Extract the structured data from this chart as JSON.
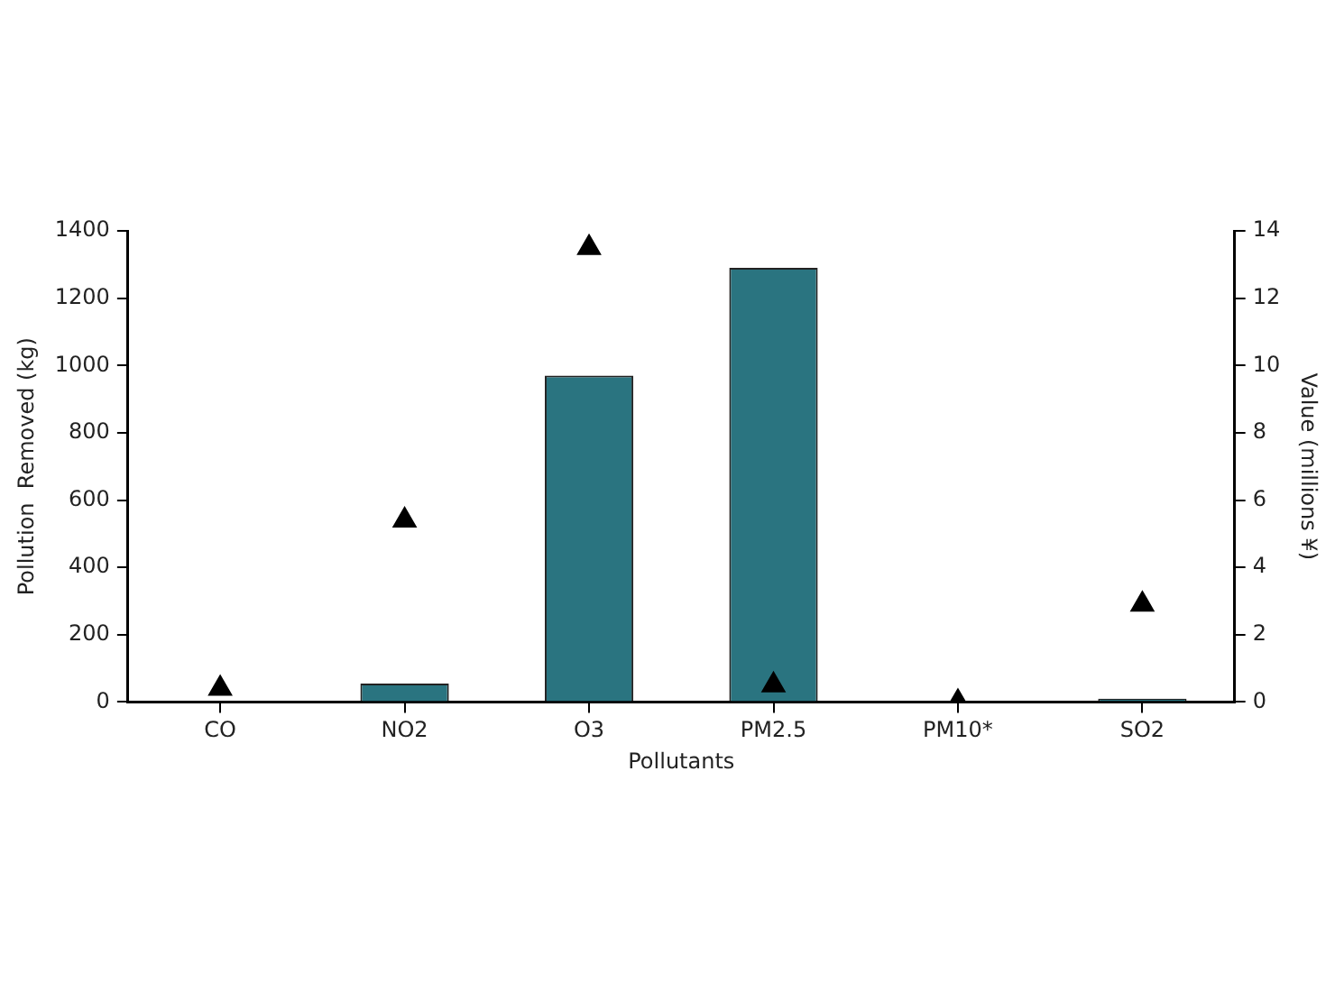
{
  "chart_data": {
    "type": "bar",
    "categories": [
      "CO",
      "NO2",
      "O3",
      "PM2.5",
      "PM10*",
      "SO2"
    ],
    "xlabel": "Pollutants",
    "ylabel": "Pollution  Removed (kg)",
    "y2label": "Value (millions ¥)",
    "ylim": [
      0,
      1400
    ],
    "yticks": [
      0,
      200,
      400,
      600,
      800,
      1000,
      1200,
      1400
    ],
    "y2lim": [
      0,
      14
    ],
    "y2ticks": [
      0,
      2,
      4,
      6,
      8,
      10,
      12,
      14
    ],
    "series": [
      {
        "color": "#2a7480",
        "values": [
          0,
          55,
          970,
          1290,
          0,
          10
        ]
      },
      {
        "type": "scatter",
        "axis": "y2",
        "marker": "triangle",
        "color": "#000000",
        "values": [
          0.4,
          5.4,
          13.5,
          0.5,
          0,
          2.9
        ]
      }
    ],
    "grid": false,
    "legend": false
  }
}
